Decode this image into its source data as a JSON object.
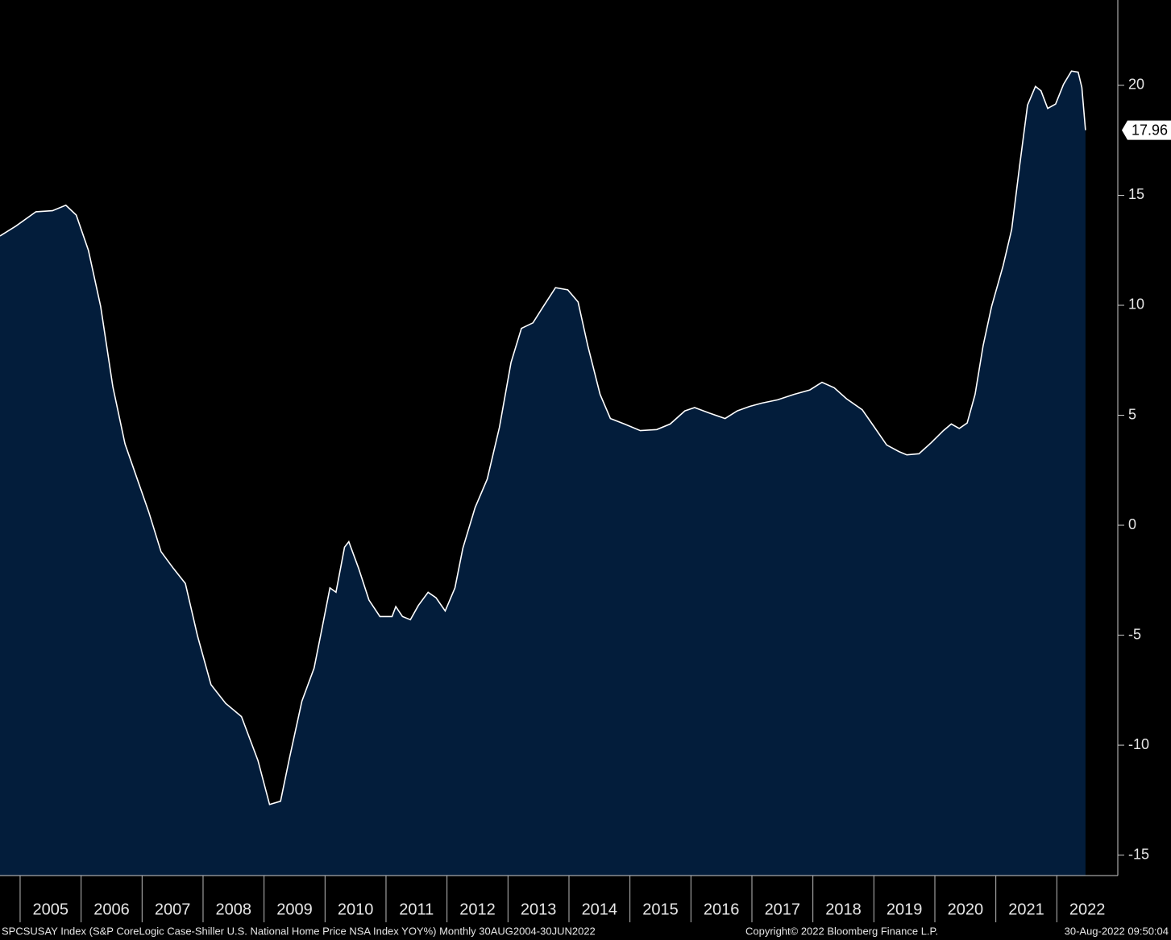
{
  "chart_data": {
    "type": "area",
    "x": [
      2004.67,
      2004.93,
      2005.26,
      2005.53,
      2005.75,
      2005.92,
      2006.12,
      2006.32,
      2006.52,
      2006.72,
      2006.92,
      2007.11,
      2007.31,
      2007.51,
      2007.71,
      2007.91,
      2008.13,
      2008.37,
      2008.63,
      2008.9,
      2009.09,
      2009.27,
      2009.42,
      2009.62,
      2009.82,
      2009.95,
      2010.08,
      2010.18,
      2010.32,
      2010.39,
      2010.55,
      2010.72,
      2010.9,
      2011.1,
      2011.16,
      2011.27,
      2011.4,
      2011.53,
      2011.69,
      2011.82,
      2011.97,
      2012.13,
      2012.26,
      2012.46,
      2012.66,
      2012.86,
      2013.05,
      2013.22,
      2013.41,
      2013.58,
      2013.78,
      2013.98,
      2014.15,
      2014.31,
      2014.51,
      2014.68,
      2014.91,
      2015.17,
      2015.44,
      2015.66,
      2015.9,
      2016.06,
      2016.3,
      2016.56,
      2016.76,
      2016.96,
      2017.16,
      2017.42,
      2017.69,
      2017.95,
      2018.15,
      2018.35,
      2018.55,
      2018.81,
      2019.01,
      2019.21,
      2019.41,
      2019.54,
      2019.74,
      2019.94,
      2020.14,
      2020.27,
      2020.4,
      2020.53,
      2020.66,
      2020.79,
      2020.93,
      2021.12,
      2021.26,
      2021.39,
      2021.52,
      2021.65,
      2021.74,
      2021.85,
      2021.98,
      2022.11,
      2022.24,
      2022.35,
      2022.41,
      2022.47
    ],
    "series": [
      {
        "name": "SPCSUSAY Index",
        "color": "#ffffff",
        "fill": "#031d3b",
        "values": [
          13.15,
          13.6,
          14.25,
          14.3,
          14.55,
          14.1,
          12.5,
          9.95,
          6.3,
          3.7,
          2.1,
          0.6,
          -1.2,
          -1.95,
          -2.65,
          -5.05,
          -7.25,
          -8.1,
          -8.7,
          -10.7,
          -12.7,
          -12.55,
          -10.55,
          -8.0,
          -6.5,
          -4.7,
          -2.85,
          -3.05,
          -1.0,
          -0.75,
          -1.95,
          -3.4,
          -4.15,
          -4.15,
          -3.7,
          -4.15,
          -4.3,
          -3.65,
          -3.05,
          -3.3,
          -3.9,
          -2.85,
          -1.05,
          0.8,
          2.1,
          4.45,
          7.4,
          8.95,
          9.2,
          9.95,
          10.8,
          10.7,
          10.15,
          8.15,
          5.95,
          4.85,
          4.6,
          4.3,
          4.35,
          4.6,
          5.2,
          5.35,
          5.1,
          4.85,
          5.2,
          5.4,
          5.55,
          5.7,
          5.95,
          6.15,
          6.5,
          6.25,
          5.75,
          5.25,
          4.45,
          3.65,
          3.35,
          3.2,
          3.25,
          3.75,
          4.3,
          4.6,
          4.4,
          4.65,
          5.95,
          8.15,
          9.95,
          11.8,
          13.45,
          16.35,
          19.1,
          19.95,
          19.75,
          18.95,
          19.15,
          20.05,
          20.65,
          20.6,
          19.9,
          17.96
        ]
      }
    ],
    "last_value": 17.96,
    "xlim": [
      2004.67,
      2023
    ],
    "xticks": [
      2005,
      2006,
      2007,
      2008,
      2009,
      2010,
      2011,
      2012,
      2013,
      2014,
      2015,
      2016,
      2017,
      2018,
      2019,
      2020,
      2021,
      2022
    ],
    "ylim": [
      -15.93,
      23.88
    ],
    "yticks": [
      -15,
      -10,
      -5,
      0,
      5,
      10,
      15,
      20
    ],
    "source_note": "SPCSUSAY Index (S&P CoreLogic Case-Shiller U.S. National Home Price NSA Index YOY%)  Monthly 30AUG2004-30JUN2022",
    "copyright": "Copyright© 2022 Bloomberg Finance L.P.",
    "timestamp": "30-Aug-2022 09:50:04"
  }
}
